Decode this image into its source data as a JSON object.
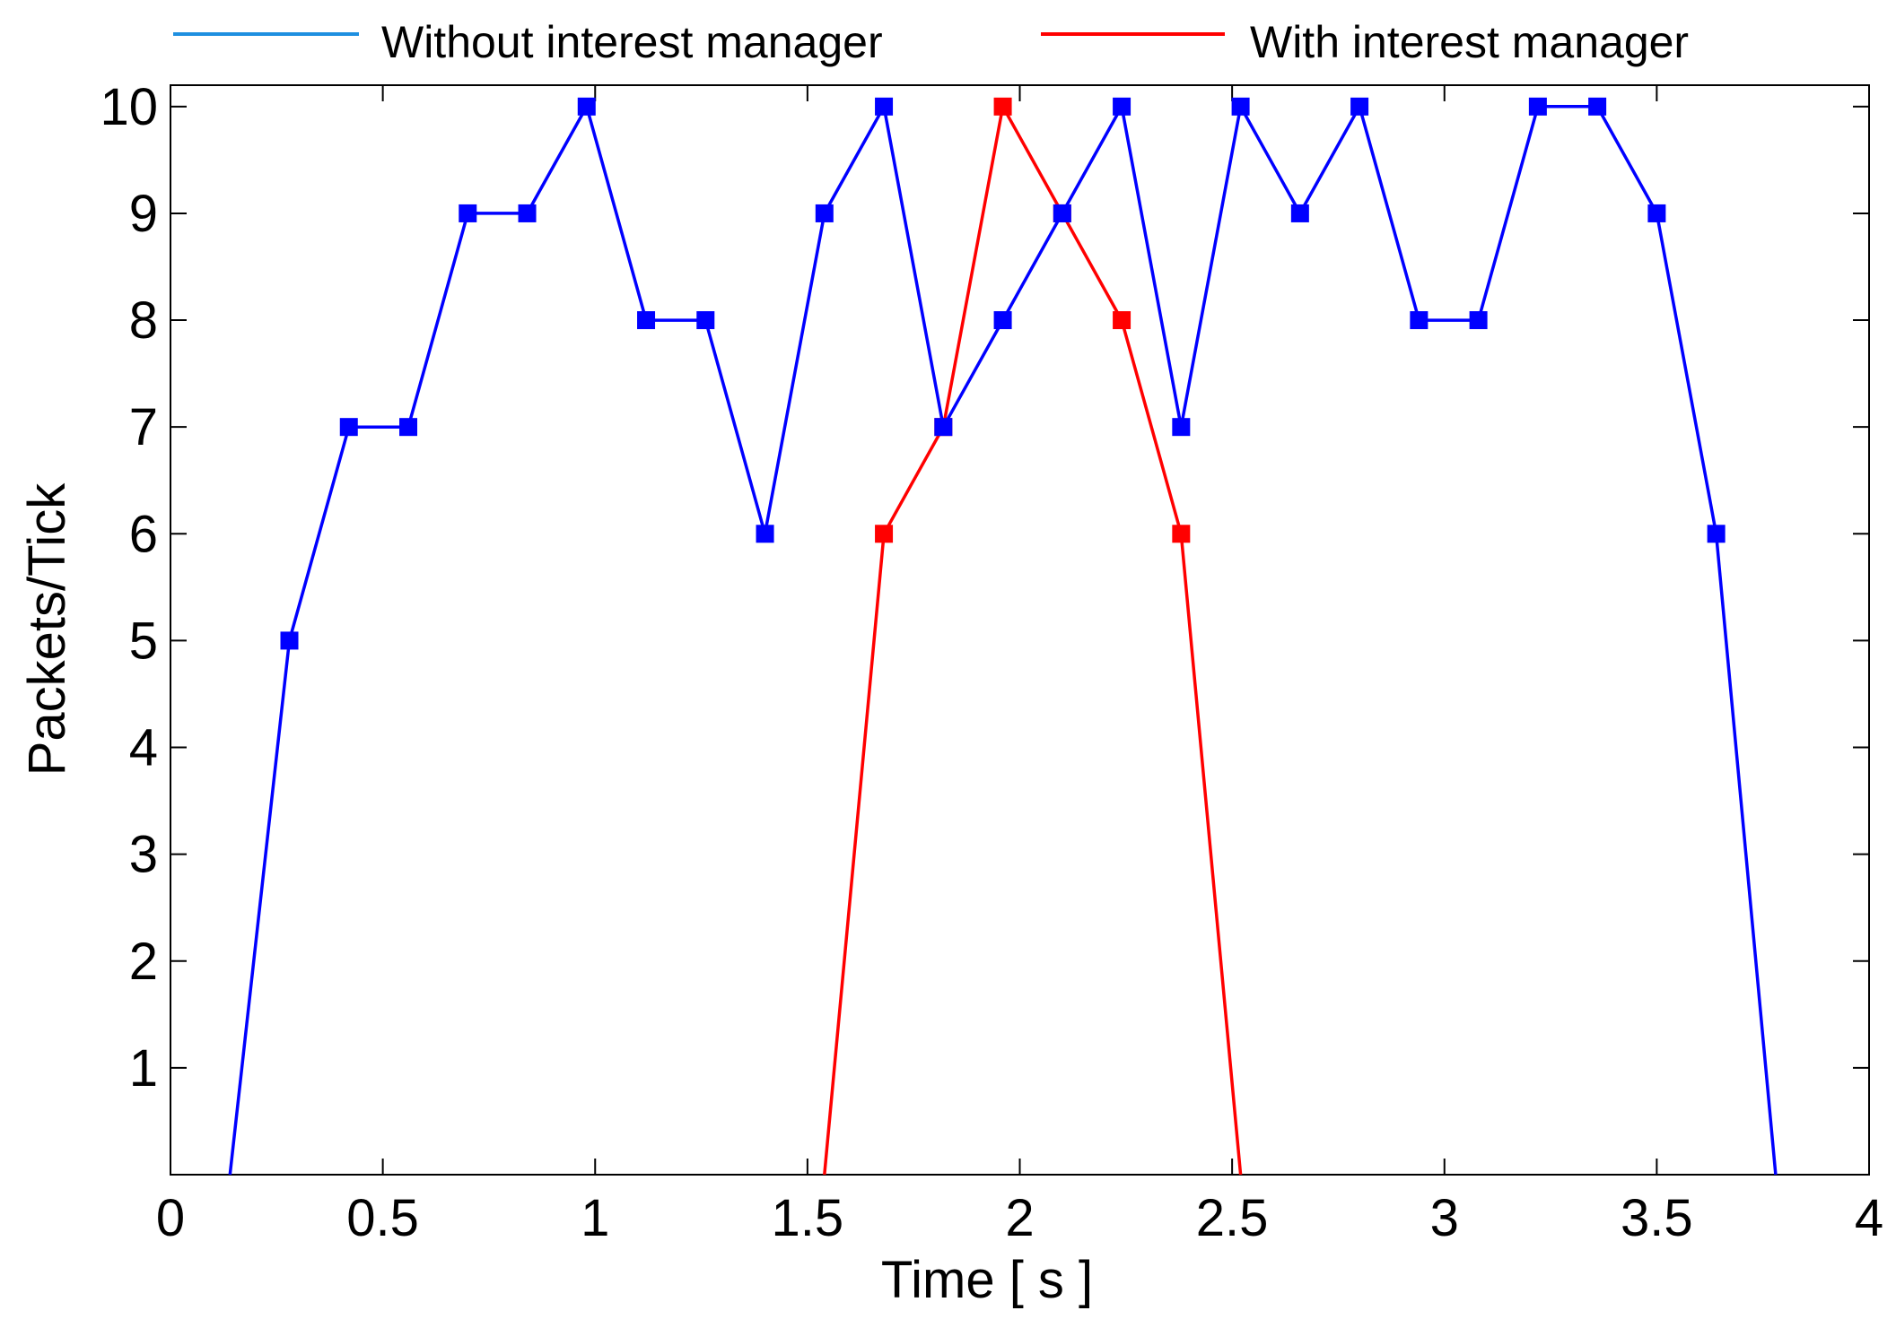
{
  "chart_data": {
    "type": "line",
    "xlabel": "Time [ s ]",
    "ylabel": "Packets/Tick",
    "xlim": [
      0,
      4
    ],
    "ylim": [
      0,
      10.2
    ],
    "x_ticks": [
      "0",
      "0.5",
      "1",
      "1.5",
      "2",
      "2.5",
      "3",
      "3.5",
      "4"
    ],
    "x_tick_values": [
      0,
      0.5,
      1,
      1.5,
      2,
      2.5,
      3,
      3.5,
      4
    ],
    "y_ticks": [
      "1",
      "2",
      "3",
      "4",
      "5",
      "6",
      "7",
      "8",
      "9",
      "10"
    ],
    "y_tick_values": [
      1,
      2,
      3,
      4,
      5,
      6,
      7,
      8,
      9,
      10
    ],
    "grid": false,
    "legend_position": "top",
    "series": [
      {
        "name": "Without interest manager",
        "legend_color": "#1e8fe0",
        "color": "#0000ff",
        "marker": "square",
        "points": [
          [
            0.14,
            0
          ],
          [
            0.28,
            5
          ],
          [
            0.42,
            7
          ],
          [
            0.56,
            7
          ],
          [
            0.7,
            9
          ],
          [
            0.84,
            9
          ],
          [
            0.98,
            10
          ],
          [
            1.12,
            8
          ],
          [
            1.26,
            8
          ],
          [
            1.4,
            6
          ],
          [
            1.54,
            9
          ],
          [
            1.68,
            10
          ],
          [
            1.82,
            7
          ],
          [
            1.96,
            8
          ],
          [
            2.1,
            9
          ],
          [
            2.24,
            10
          ],
          [
            2.38,
            7
          ],
          [
            2.52,
            10
          ],
          [
            2.66,
            9
          ],
          [
            2.8,
            10
          ],
          [
            2.94,
            8
          ],
          [
            3.08,
            8
          ],
          [
            3.22,
            10
          ],
          [
            3.36,
            10
          ],
          [
            3.5,
            9
          ],
          [
            3.64,
            6
          ],
          [
            3.78,
            0
          ]
        ]
      },
      {
        "name": "With interest manager",
        "legend_color": "#ff0000",
        "color": "#ff0000",
        "marker": "square",
        "points": [
          [
            1.54,
            0
          ],
          [
            1.68,
            6
          ],
          [
            1.82,
            7
          ],
          [
            1.96,
            10
          ],
          [
            2.1,
            9
          ],
          [
            2.24,
            8
          ],
          [
            2.38,
            6
          ],
          [
            2.52,
            0
          ]
        ]
      }
    ]
  }
}
